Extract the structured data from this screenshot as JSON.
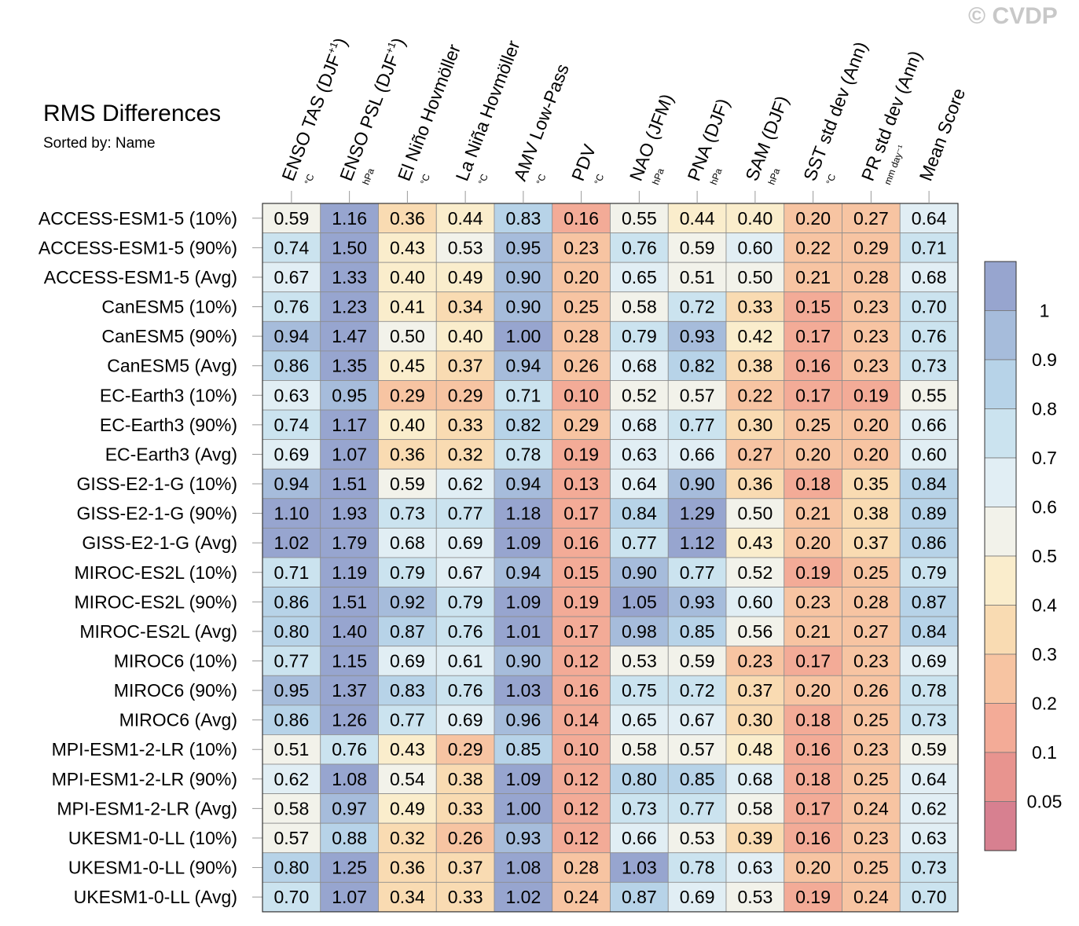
{
  "watermark": "© CVDP",
  "chart_data": {
    "type": "heatmap",
    "title": "RMS Differences",
    "subtitle": "Sorted by: Name",
    "columns": [
      {
        "label": "ENSO TAS (DJF",
        "sup": "+1",
        "close": ")",
        "unit": "°C"
      },
      {
        "label": "ENSO PSL (DJF",
        "sup": "+1",
        "close": ")",
        "unit": "hPa"
      },
      {
        "label": "El Niño Hovmöller",
        "sup": "",
        "close": "",
        "unit": "°C"
      },
      {
        "label": "La Niña Hovmöller",
        "sup": "",
        "close": "",
        "unit": "°C"
      },
      {
        "label": "AMV Low-Pass",
        "sup": "",
        "close": "",
        "unit": "°C"
      },
      {
        "label": "PDV",
        "sup": "",
        "close": "",
        "unit": "°C"
      },
      {
        "label": "NAO (JFM)",
        "sup": "",
        "close": "",
        "unit": "hPa"
      },
      {
        "label": "PNA (DJF)",
        "sup": "",
        "close": "",
        "unit": "hPa"
      },
      {
        "label": "SAM (DJF)",
        "sup": "",
        "close": "",
        "unit": "hPa"
      },
      {
        "label": "SST std dev (Ann)",
        "sup": "",
        "close": "",
        "unit": "°C"
      },
      {
        "label": "PR std dev (Ann)",
        "sup": "",
        "close": "",
        "unit": "mm day⁻¹"
      },
      {
        "label": "Mean Score",
        "sup": "",
        "close": "",
        "unit": ""
      }
    ],
    "rows": [
      {
        "name": "ACCESS-ESM1-5 (10%)",
        "values": [
          "0.59",
          "1.16",
          "0.36",
          "0.44",
          "0.83",
          "0.16",
          "0.55",
          "0.44",
          "0.40",
          "0.20",
          "0.27",
          "0.64"
        ]
      },
      {
        "name": "ACCESS-ESM1-5 (90%)",
        "values": [
          "0.74",
          "1.50",
          "0.43",
          "0.53",
          "0.95",
          "0.23",
          "0.76",
          "0.59",
          "0.60",
          "0.22",
          "0.29",
          "0.71"
        ]
      },
      {
        "name": "ACCESS-ESM1-5 (Avg)",
        "values": [
          "0.67",
          "1.33",
          "0.40",
          "0.49",
          "0.90",
          "0.20",
          "0.65",
          "0.51",
          "0.50",
          "0.21",
          "0.28",
          "0.68"
        ]
      },
      {
        "name": "CanESM5 (10%)",
        "values": [
          "0.76",
          "1.23",
          "0.41",
          "0.34",
          "0.90",
          "0.25",
          "0.58",
          "0.72",
          "0.33",
          "0.15",
          "0.23",
          "0.70"
        ]
      },
      {
        "name": "CanESM5 (90%)",
        "values": [
          "0.94",
          "1.47",
          "0.50",
          "0.40",
          "1.00",
          "0.28",
          "0.79",
          "0.93",
          "0.42",
          "0.17",
          "0.23",
          "0.76"
        ]
      },
      {
        "name": "CanESM5 (Avg)",
        "values": [
          "0.86",
          "1.35",
          "0.45",
          "0.37",
          "0.94",
          "0.26",
          "0.68",
          "0.82",
          "0.38",
          "0.16",
          "0.23",
          "0.73"
        ]
      },
      {
        "name": "EC-Earth3 (10%)",
        "values": [
          "0.63",
          "0.95",
          "0.29",
          "0.29",
          "0.71",
          "0.10",
          "0.52",
          "0.57",
          "0.22",
          "0.17",
          "0.19",
          "0.55"
        ]
      },
      {
        "name": "EC-Earth3 (90%)",
        "values": [
          "0.74",
          "1.17",
          "0.40",
          "0.33",
          "0.82",
          "0.29",
          "0.68",
          "0.77",
          "0.30",
          "0.25",
          "0.20",
          "0.66"
        ]
      },
      {
        "name": "EC-Earth3 (Avg)",
        "values": [
          "0.69",
          "1.07",
          "0.36",
          "0.32",
          "0.78",
          "0.19",
          "0.63",
          "0.66",
          "0.27",
          "0.20",
          "0.20",
          "0.60"
        ]
      },
      {
        "name": "GISS-E2-1-G (10%)",
        "values": [
          "0.94",
          "1.51",
          "0.59",
          "0.62",
          "0.94",
          "0.13",
          "0.64",
          "0.90",
          "0.36",
          "0.18",
          "0.35",
          "0.84"
        ]
      },
      {
        "name": "GISS-E2-1-G (90%)",
        "values": [
          "1.10",
          "1.93",
          "0.73",
          "0.77",
          "1.18",
          "0.17",
          "0.84",
          "1.29",
          "0.50",
          "0.21",
          "0.38",
          "0.89"
        ]
      },
      {
        "name": "GISS-E2-1-G (Avg)",
        "values": [
          "1.02",
          "1.79",
          "0.68",
          "0.69",
          "1.09",
          "0.16",
          "0.77",
          "1.12",
          "0.43",
          "0.20",
          "0.37",
          "0.86"
        ]
      },
      {
        "name": "MIROC-ES2L (10%)",
        "values": [
          "0.71",
          "1.19",
          "0.79",
          "0.67",
          "0.94",
          "0.15",
          "0.90",
          "0.77",
          "0.52",
          "0.19",
          "0.25",
          "0.79"
        ]
      },
      {
        "name": "MIROC-ES2L (90%)",
        "values": [
          "0.86",
          "1.51",
          "0.92",
          "0.79",
          "1.09",
          "0.19",
          "1.05",
          "0.93",
          "0.60",
          "0.23",
          "0.28",
          "0.87"
        ]
      },
      {
        "name": "MIROC-ES2L (Avg)",
        "values": [
          "0.80",
          "1.40",
          "0.87",
          "0.76",
          "1.01",
          "0.17",
          "0.98",
          "0.85",
          "0.56",
          "0.21",
          "0.27",
          "0.84"
        ]
      },
      {
        "name": "MIROC6 (10%)",
        "values": [
          "0.77",
          "1.15",
          "0.69",
          "0.61",
          "0.90",
          "0.12",
          "0.53",
          "0.59",
          "0.23",
          "0.17",
          "0.23",
          "0.69"
        ]
      },
      {
        "name": "MIROC6 (90%)",
        "values": [
          "0.95",
          "1.37",
          "0.83",
          "0.76",
          "1.03",
          "0.16",
          "0.75",
          "0.72",
          "0.37",
          "0.20",
          "0.26",
          "0.78"
        ]
      },
      {
        "name": "MIROC6 (Avg)",
        "values": [
          "0.86",
          "1.26",
          "0.77",
          "0.69",
          "0.96",
          "0.14",
          "0.65",
          "0.67",
          "0.30",
          "0.18",
          "0.25",
          "0.73"
        ]
      },
      {
        "name": "MPI-ESM1-2-LR (10%)",
        "values": [
          "0.51",
          "0.76",
          "0.43",
          "0.29",
          "0.85",
          "0.10",
          "0.58",
          "0.57",
          "0.48",
          "0.16",
          "0.23",
          "0.59"
        ]
      },
      {
        "name": "MPI-ESM1-2-LR (90%)",
        "values": [
          "0.62",
          "1.08",
          "0.54",
          "0.38",
          "1.09",
          "0.12",
          "0.80",
          "0.85",
          "0.68",
          "0.18",
          "0.25",
          "0.64"
        ]
      },
      {
        "name": "MPI-ESM1-2-LR (Avg)",
        "values": [
          "0.58",
          "0.97",
          "0.49",
          "0.33",
          "1.00",
          "0.12",
          "0.73",
          "0.77",
          "0.58",
          "0.17",
          "0.24",
          "0.62"
        ]
      },
      {
        "name": "UKESM1-0-LL (10%)",
        "values": [
          "0.57",
          "0.88",
          "0.32",
          "0.26",
          "0.93",
          "0.12",
          "0.66",
          "0.53",
          "0.39",
          "0.16",
          "0.23",
          "0.63"
        ]
      },
      {
        "name": "UKESM1-0-LL (90%)",
        "values": [
          "0.80",
          "1.25",
          "0.36",
          "0.37",
          "1.08",
          "0.28",
          "1.03",
          "0.78",
          "0.63",
          "0.20",
          "0.25",
          "0.73"
        ]
      },
      {
        "name": "UKESM1-0-LL (Avg)",
        "values": [
          "0.70",
          "1.07",
          "0.34",
          "0.33",
          "1.02",
          "0.24",
          "0.87",
          "0.69",
          "0.53",
          "0.19",
          "0.24",
          "0.70"
        ]
      }
    ],
    "colorbar": {
      "ticks": [
        "1",
        "0.9",
        "0.8",
        "0.7",
        "0.6",
        "0.5",
        "0.4",
        "0.3",
        "0.2",
        "0.1",
        "0.05"
      ],
      "colors_top_to_bottom": [
        "#97a5cf",
        "#a6bcdb",
        "#b7d3e8",
        "#cbe3ef",
        "#e1eef4",
        "#f2f2ea",
        "#faedcc",
        "#f9dbb2",
        "#f7c4a2",
        "#f3ab97",
        "#e8948f",
        "#d78090"
      ],
      "thresholds": [
        1.0,
        0.9,
        0.8,
        0.7,
        0.6,
        0.5,
        0.4,
        0.3,
        0.2,
        0.1,
        0.05
      ]
    },
    "legend": "right"
  }
}
